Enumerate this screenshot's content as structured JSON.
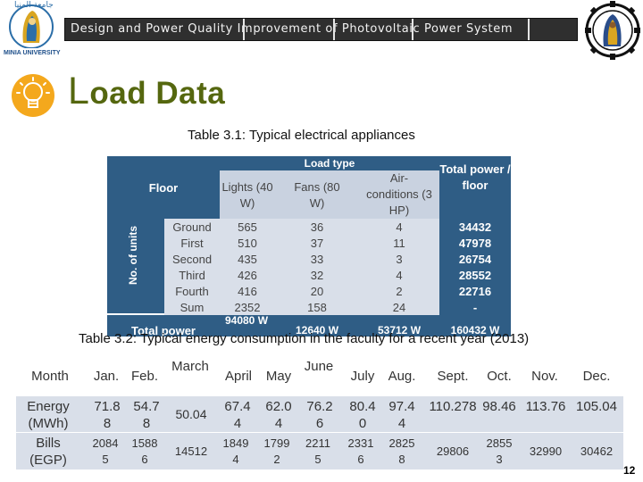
{
  "banner": {
    "title": "Design and Power Quality Improvement of Photovoltaic Power System"
  },
  "logo_left": {
    "arabic_text": "جامعة المنيا",
    "caption": "MINIA UNIVERSITY"
  },
  "slide": {
    "title_first_letter": "L",
    "title_rest": "oad Data"
  },
  "table1": {
    "caption": "Table 3.1: Typical electrical appliances",
    "floor_header": "Floor",
    "units_label": "No. of units",
    "load_type_header": "Load type",
    "col_lights": "Lights (40 W)",
    "col_fans": "Fans (80 W)",
    "col_ac": "Air-conditions (3 HP)",
    "col_total": "Total power / floor",
    "rows": [
      {
        "floor": "Ground",
        "lights": "565",
        "fans": "36",
        "ac": "4",
        "total": "34432"
      },
      {
        "floor": "First",
        "lights": "510",
        "fans": "37",
        "ac": "11",
        "total": "47978"
      },
      {
        "floor": "Second",
        "lights": "435",
        "fans": "33",
        "ac": "3",
        "total": "26754"
      },
      {
        "floor": "Third",
        "lights": "426",
        "fans": "32",
        "ac": "4",
        "total": "28552"
      },
      {
        "floor": "Fourth",
        "lights": "416",
        "fans": "20",
        "ac": "2",
        "total": "22716"
      },
      {
        "floor": "Sum",
        "lights": "2352",
        "fans": "158",
        "ac": "24",
        "total": "-"
      }
    ],
    "total_row": {
      "label": "Total power",
      "lights": "94080 W",
      "fans": "12640 W",
      "ac": "53712 W",
      "total": "160432 W"
    }
  },
  "table2": {
    "caption": "Table 3.2: Typical energy consumption in the faculty for a recent year (2013)",
    "header": [
      "Month",
      "Jan.",
      "Feb.",
      "March",
      "April",
      "May",
      "June",
      "July",
      "Aug.",
      "Sept.",
      "Oct.",
      "Nov.",
      "Dec."
    ],
    "rows": [
      {
        "label": "Energy (MWh)",
        "values": [
          "71.88",
          "54.78",
          "50.04",
          "67.44",
          "62.04",
          "76.26",
          "80.40",
          "97.44",
          "110.278",
          "98.46",
          "113.76",
          "105.04"
        ]
      },
      {
        "label": "Bills (EGP)",
        "values": [
          "20845",
          "15886",
          "14512",
          "18494",
          "17992",
          "22115",
          "23316",
          "28258",
          "29806",
          "28553",
          "32990",
          "30462"
        ]
      }
    ]
  },
  "page_number": "12",
  "colors": {
    "header_dark": "#2f5d85",
    "row_light": "#d9dfe9",
    "title_green": "#55670f"
  }
}
